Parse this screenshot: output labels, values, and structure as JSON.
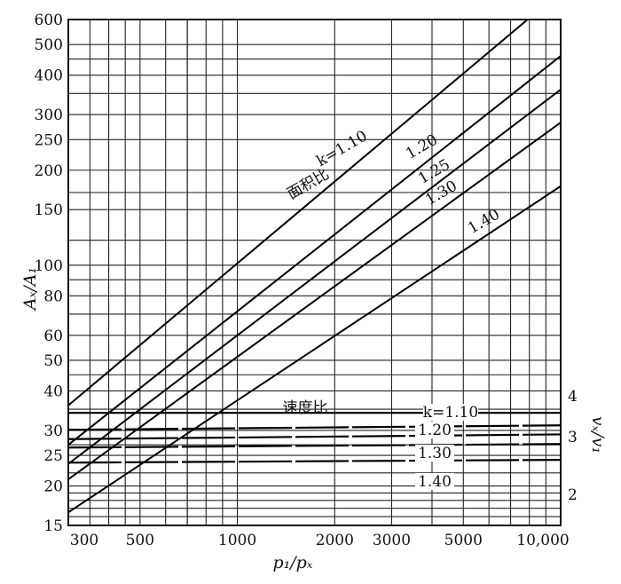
{
  "chart_data": {
    "type": "line",
    "x_scale": "log",
    "y_scale": "log",
    "xlim": [
      300,
      10000
    ],
    "ylim": [
      15,
      600
    ],
    "xlabel": "p₁/pₓ",
    "ylabel": "Aₓ/A₁",
    "y2label": "vₓ/v₁",
    "x_ticks": [
      "300",
      "500",
      "1000",
      "2000",
      "3000",
      "5000",
      "10,000"
    ],
    "x_tick_values": [
      300,
      500,
      1000,
      2000,
      3000,
      5000,
      10000
    ],
    "y_ticks": [
      "15",
      "20",
      "25",
      "30",
      "40",
      "50",
      "60",
      "80",
      "100",
      "150",
      "200",
      "250",
      "300",
      "400",
      "500",
      "600"
    ],
    "y_tick_values": [
      15,
      20,
      25,
      30,
      40,
      50,
      60,
      80,
      100,
      150,
      200,
      250,
      300,
      400,
      500,
      600
    ],
    "y2_ticks": [
      "2",
      "3",
      "4"
    ],
    "y2_tick_values": [
      2,
      3,
      4
    ],
    "grid": true,
    "area_group_label": "面积比",
    "velocity_group_label": "速度比",
    "area_ratio_series": [
      {
        "name": "k=1.10",
        "label": "k=1.10",
        "x": [
          300,
          7900
        ],
        "y": [
          36,
          600
        ]
      },
      {
        "name": "k=1.20",
        "label": "1.20",
        "x": [
          300,
          10000
        ],
        "y": [
          27,
          460
        ]
      },
      {
        "name": "k=1.25",
        "label": "1.25",
        "x": [
          300,
          10000
        ],
        "y": [
          23.5,
          360
        ]
      },
      {
        "name": "k=1.30",
        "label": "1.30",
        "x": [
          300,
          10000
        ],
        "y": [
          21,
          283
        ]
      },
      {
        "name": "k=1.40",
        "label": "1.40",
        "x": [
          300,
          10000
        ],
        "y": [
          16.5,
          178
        ]
      }
    ],
    "velocity_ratio_series": [
      {
        "name": "k=1.10",
        "label": "k=1.10",
        "x": [
          300,
          10000
        ],
        "y": [
          3.55,
          3.55
        ]
      },
      {
        "name": "k=1.20",
        "label": "1.20",
        "x": [
          300,
          10000
        ],
        "y": [
          3.15,
          3.25
        ]
      },
      {
        "name": "k=1.25",
        "label": "",
        "x": [
          300,
          10000
        ],
        "y": [
          2.95,
          3.05
        ]
      },
      {
        "name": "k=1.30",
        "label": "1.30",
        "x": [
          300,
          10000
        ],
        "y": [
          2.78,
          2.85
        ]
      },
      {
        "name": "k=1.40",
        "label": "1.40",
        "x": [
          300,
          10000
        ],
        "y": [
          2.5,
          2.55
        ]
      }
    ]
  }
}
